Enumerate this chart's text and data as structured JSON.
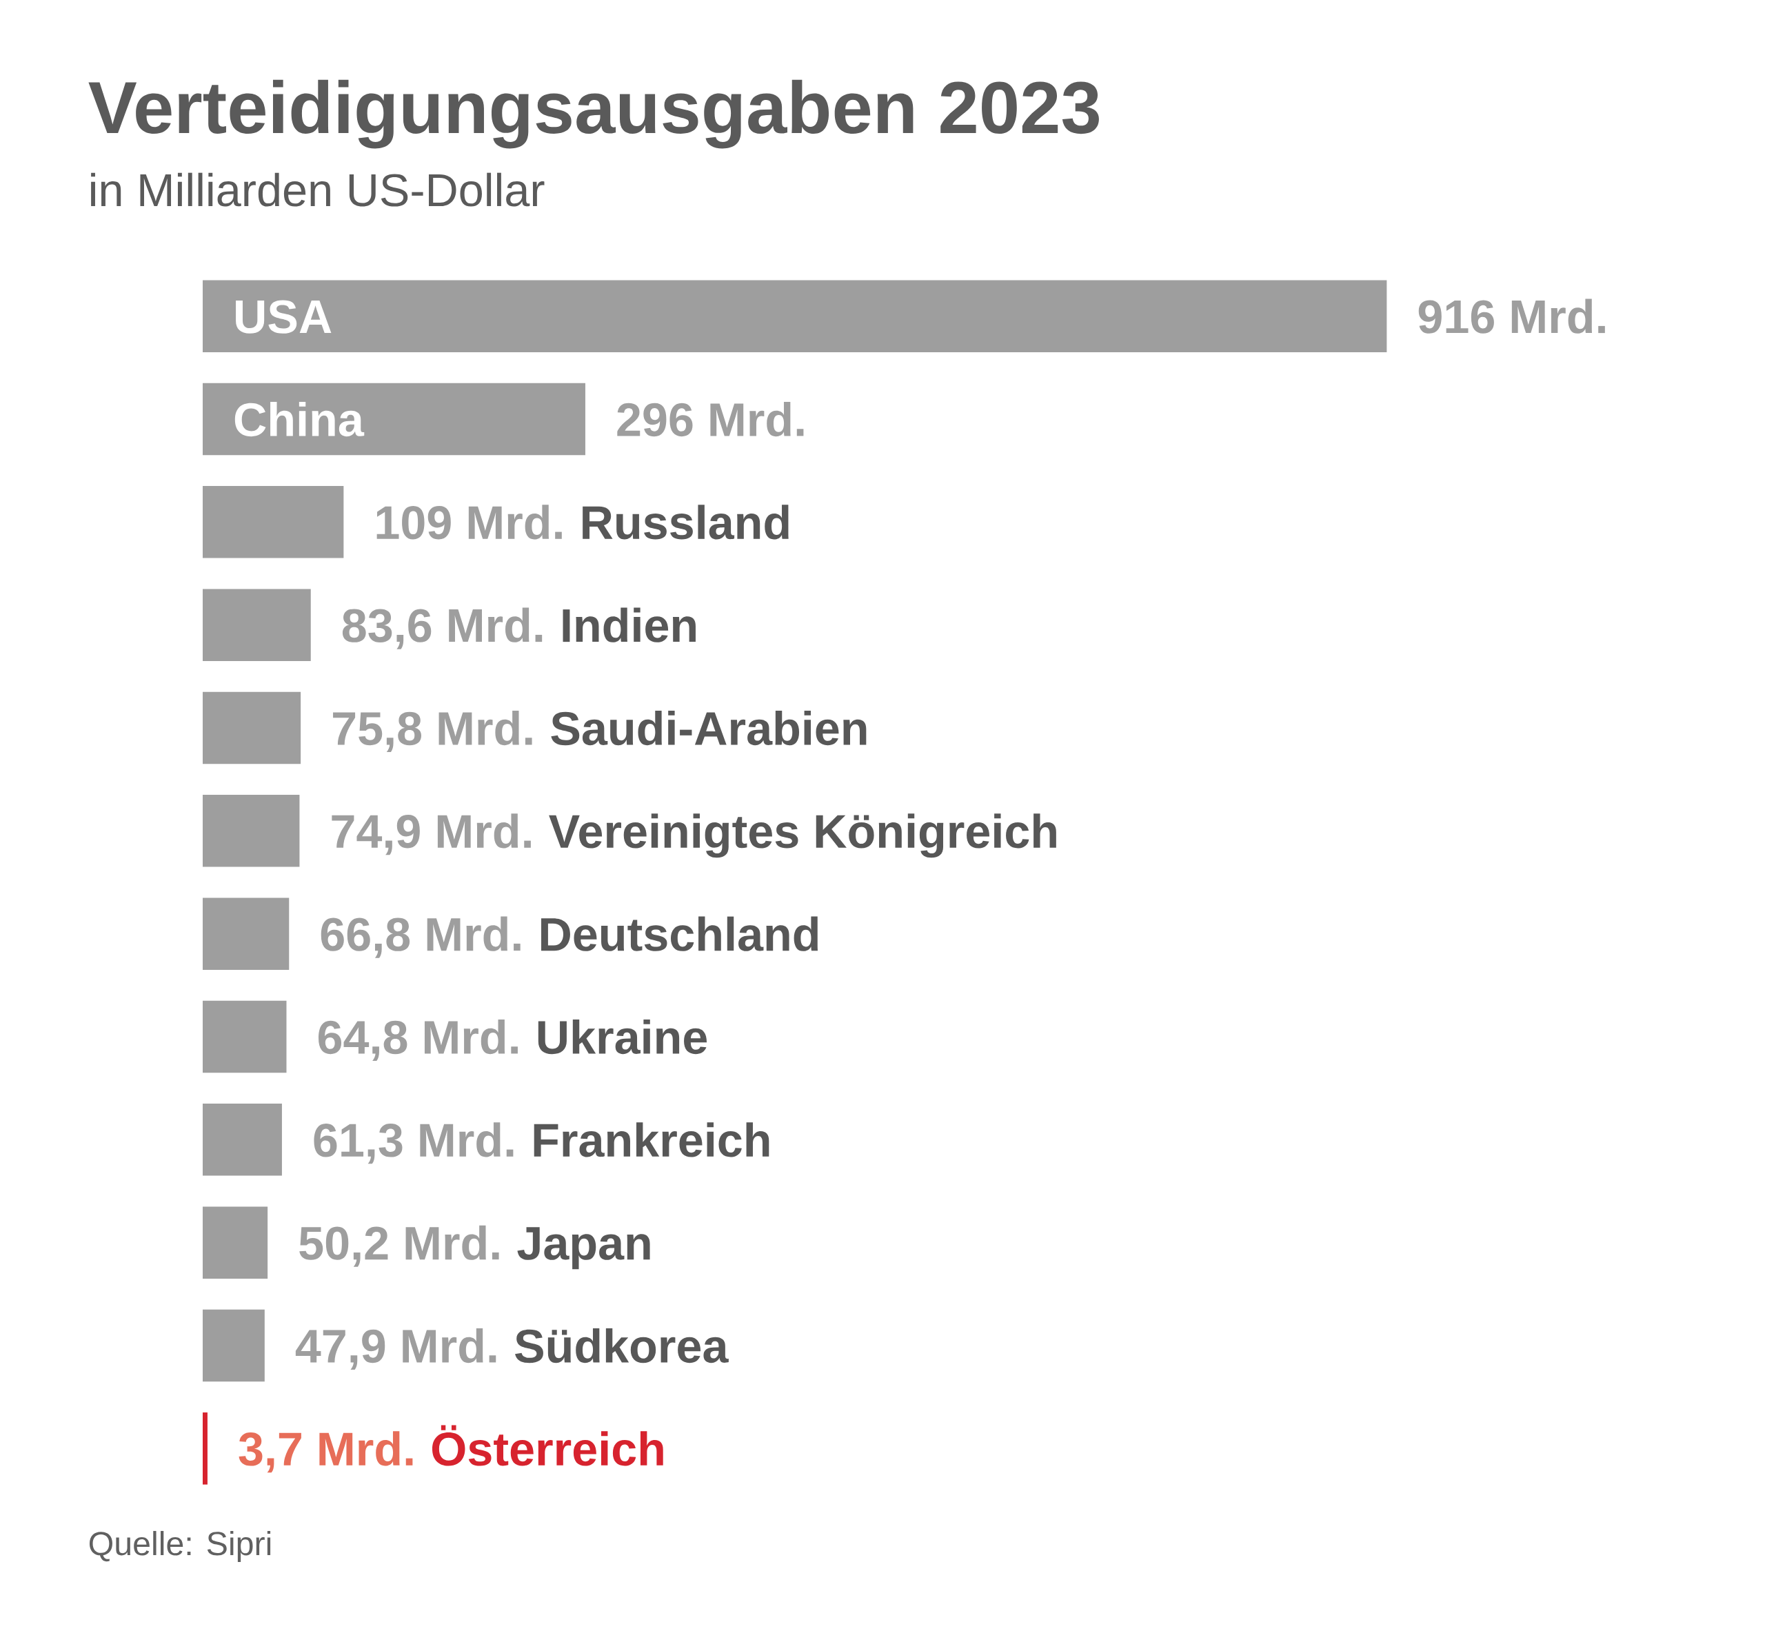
{
  "chart_data": {
    "type": "bar",
    "orientation": "horizontal",
    "title": "Verteidigungsausgaben 2023",
    "subtitle": "in Milliarden US-Dollar",
    "categories": [
      "USA",
      "China",
      "Russland",
      "Indien",
      "Saudi-Arabien",
      "Vereinigtes Königreich",
      "Deutschland",
      "Ukraine",
      "Frankreich",
      "Japan",
      "Südkorea",
      "Österreich"
    ],
    "values": [
      916,
      296,
      109,
      83.6,
      75.8,
      74.9,
      66.8,
      64.8,
      61.3,
      50.2,
      47.9,
      3.7
    ],
    "colors": [
      "#9e9e9e",
      "#9e9e9e",
      "#9e9e9e",
      "#9e9e9e",
      "#9e9e9e",
      "#9e9e9e",
      "#9e9e9e",
      "#9e9e9e",
      "#9e9e9e",
      "#9e9e9e",
      "#9e9e9e",
      "#d7232e"
    ],
    "value_labels": [
      "916 Mrd.",
      "296 Mrd.",
      "109 Mrd.",
      "83,6 Mrd.",
      "75,8 Mrd.",
      "74,9 Mrd.",
      "66,8 Mrd.",
      "64,8 Mrd.",
      "61,3 Mrd.",
      "50,2 Mrd.",
      "47,9 Mrd.",
      "3,7 Mrd."
    ],
    "tick_labels": false,
    "annotations": [
      "Quelle: Sipri"
    ]
  }
}
